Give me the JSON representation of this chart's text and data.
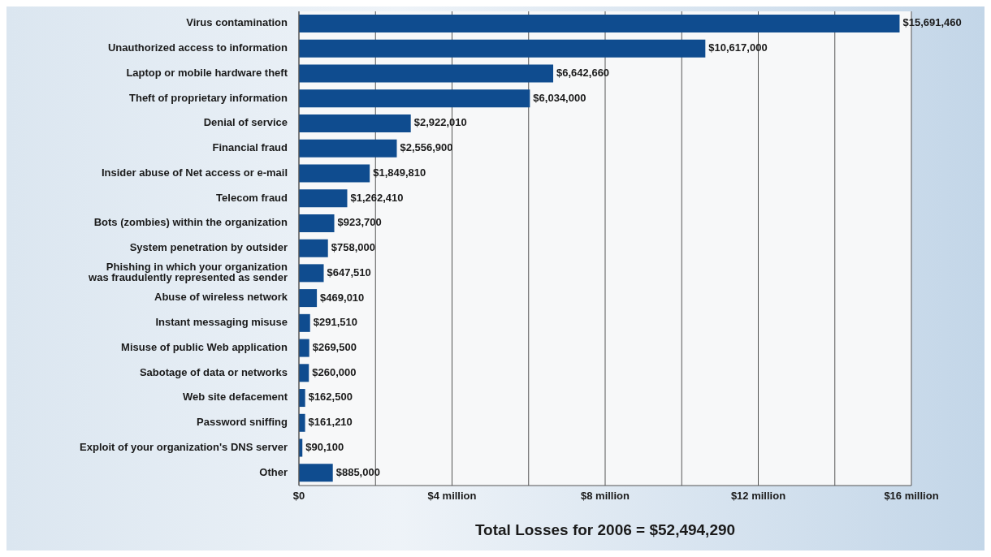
{
  "chart_data": {
    "type": "bar",
    "orientation": "horizontal",
    "categories": [
      "Virus contamination",
      "Unauthorized access to information",
      "Laptop or mobile hardware theft",
      "Theft of proprietary information",
      "Denial of service",
      "Financial fraud",
      "Insider abuse of Net access or e-mail",
      "Telecom fraud",
      "Bots (zombies) within the organization",
      "System penetration by outsider",
      "Phishing in which your organization\nwas fraudulently represented as sender",
      "Abuse of wireless network",
      "Instant messaging misuse",
      "Misuse of public Web application",
      "Sabotage of data or networks",
      "Web site defacement",
      "Password sniffing",
      "Exploit of your organization's DNS server",
      "Other"
    ],
    "values": [
      15691460,
      10617000,
      6642660,
      6034000,
      2922010,
      2556900,
      1849810,
      1262410,
      923700,
      758000,
      647510,
      469010,
      291510,
      269500,
      260000,
      162500,
      161210,
      90100,
      885000
    ],
    "value_labels": [
      "$15,691,460",
      "$10,617,000",
      "$6,642,660",
      "$6,034,000",
      "$2,922,010",
      "$2,556,900",
      "$1,849,810",
      "$1,262,410",
      "$923,700",
      "$758,000",
      "$647,510",
      "$469,010",
      "$291,510",
      "$269,500",
      "$260,000",
      "$162,500",
      "$161,210",
      "$90,100",
      "$885,000"
    ],
    "color": "#0f4c8f",
    "xlim": [
      0,
      16000000
    ],
    "xticks": [
      {
        "value": 0,
        "label": "$0"
      },
      {
        "value": 2000000,
        "label": null
      },
      {
        "value": 4000000,
        "label": "$4 million"
      },
      {
        "value": 6000000,
        "label": null
      },
      {
        "value": 8000000,
        "label": "$8 million"
      },
      {
        "value": 10000000,
        "label": null
      },
      {
        "value": 12000000,
        "label": "$12 million"
      },
      {
        "value": 14000000,
        "label": null
      },
      {
        "value": 16000000,
        "label": "$16 million"
      }
    ],
    "grid": "x",
    "annotations": [
      "Total Losses for 2006 = $52,494,290"
    ]
  }
}
